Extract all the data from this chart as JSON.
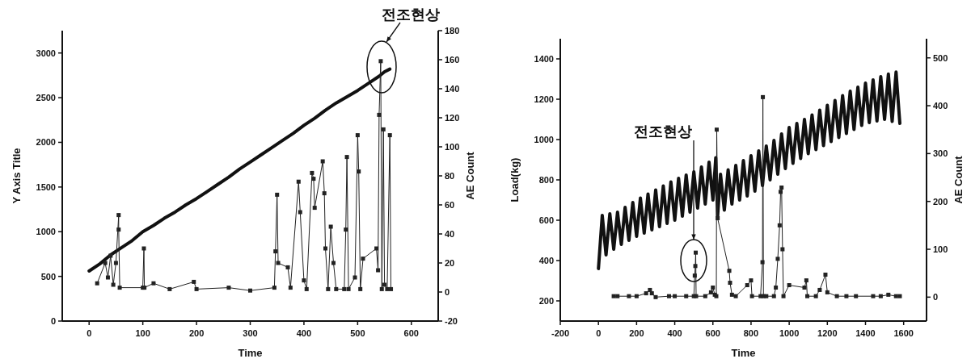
{
  "chart_data": [
    {
      "type": "line",
      "xlabel": "Time",
      "ylabel": "Y Axis Title",
      "y2label": "AE Count",
      "xlim": [
        -50,
        650
      ],
      "xticks": [
        0,
        100,
        200,
        300,
        400,
        500,
        600
      ],
      "ylim": [
        0,
        3250
      ],
      "yticks": [
        0,
        500,
        1000,
        1500,
        2000,
        2500,
        3000
      ],
      "y2lim": [
        -20,
        180
      ],
      "y2ticks": [
        -20,
        0,
        20,
        40,
        60,
        80,
        100,
        120,
        140,
        160,
        180
      ],
      "series": [
        {
          "color": "#111111",
          "marker": "none",
          "x": [
            0,
            20,
            40,
            60,
            80,
            100,
            120,
            140,
            160,
            180,
            200,
            220,
            240,
            260,
            280,
            300,
            320,
            340,
            360,
            380,
            400,
            420,
            440,
            460,
            480,
            500,
            520,
            540,
            550,
            560
          ],
          "values": [
            560,
            640,
            740,
            820,
            900,
            1000,
            1070,
            1150,
            1220,
            1300,
            1370,
            1450,
            1530,
            1610,
            1700,
            1780,
            1860,
            1940,
            2020,
            2100,
            2190,
            2270,
            2360,
            2440,
            2510,
            2580,
            2660,
            2740,
            2790,
            2820
          ]
        },
        {
          "color": "#222222",
          "axis": "y2",
          "marker": "square",
          "x": [
            15,
            30,
            35,
            40,
            45,
            50,
            55,
            55,
            57,
            100,
            102,
            103,
            120,
            150,
            195,
            200,
            260,
            300,
            345,
            347,
            350,
            352,
            370,
            375,
            390,
            393,
            400,
            405,
            415,
            418,
            420,
            435,
            438,
            440,
            445,
            450,
            455,
            460,
            475,
            478,
            480,
            483,
            495,
            500,
            502,
            505,
            510,
            535,
            538,
            540,
            543,
            545,
            548,
            550,
            555,
            560,
            562
          ],
          "values": [
            6,
            20,
            10,
            25,
            5,
            20,
            53,
            43,
            3,
            3,
            30,
            3,
            6,
            2,
            7,
            2,
            3,
            1,
            3,
            28,
            67,
            20,
            17,
            3,
            76,
            55,
            8,
            2,
            82,
            78,
            58,
            90,
            68,
            30,
            2,
            45,
            20,
            2,
            2,
            43,
            93,
            2,
            10,
            108,
            83,
            2,
            23,
            30,
            15,
            122,
            159,
            2,
            112,
            5,
            2,
            108,
            2
          ]
        }
      ],
      "annotations": [
        "전조현상"
      ]
    },
    {
      "type": "line",
      "xlabel": "Time",
      "ylabel": "Load(kg)",
      "y2label": "AE Count",
      "xlim": [
        -200,
        1720
      ],
      "xticks": [
        -200,
        0,
        200,
        400,
        600,
        800,
        1000,
        1200,
        1400,
        1600
      ],
      "ylim": [
        100,
        1500
      ],
      "yticks": [
        200,
        400,
        600,
        800,
        1000,
        1200,
        1400
      ],
      "y2lim": [
        -50,
        540
      ],
      "y2ticks": [
        0,
        100,
        200,
        300,
        400,
        500
      ],
      "series": [
        {
          "color": "#111111",
          "marker": "none",
          "x": [
            0,
            20,
            40,
            60,
            80,
            100,
            120,
            140,
            160,
            180,
            200,
            220,
            240,
            260,
            280,
            300,
            320,
            340,
            360,
            380,
            400,
            420,
            440,
            460,
            480,
            500,
            520,
            540,
            560,
            580,
            600,
            615,
            625,
            640,
            660,
            680,
            700,
            720,
            740,
            760,
            780,
            800,
            820,
            840,
            860,
            880,
            900,
            920,
            940,
            960,
            980,
            1000,
            1020,
            1040,
            1060,
            1080,
            1100,
            1120,
            1140,
            1160,
            1180,
            1200,
            1220,
            1240,
            1260,
            1280,
            1300,
            1320,
            1340,
            1360,
            1380,
            1400,
            1420,
            1440,
            1460,
            1480,
            1500,
            1520,
            1540,
            1560,
            1580
          ],
          "values": [
            360,
            624,
            428,
            632,
            456,
            640,
            480,
            664,
            500,
            688,
            520,
            710,
            536,
            730,
            552,
            750,
            568,
            770,
            584,
            790,
            600,
            808,
            620,
            824,
            640,
            840,
            660,
            864,
            680,
            888,
            700,
            910,
            620,
            828,
            650,
            850,
            680,
            872,
            700,
            896,
            720,
            920,
            744,
            944,
            772,
            968,
            800,
            996,
            828,
            1028,
            856,
            1060,
            882,
            1080,
            906,
            1100,
            930,
            1122,
            950,
            1146,
            970,
            1170,
            990,
            1194,
            1010,
            1218,
            1030,
            1240,
            1050,
            1260,
            1070,
            1280,
            1084,
            1296,
            1092,
            1312,
            1100,
            1325,
            1090,
            1335,
            1080
          ]
        },
        {
          "color": "#222222",
          "axis": "y2",
          "marker": "square",
          "x": [
            80,
            100,
            160,
            200,
            250,
            270,
            280,
            300,
            370,
            400,
            460,
            500,
            505,
            508,
            510,
            512,
            560,
            590,
            600,
            610,
            618,
            620,
            625,
            686,
            690,
            700,
            720,
            780,
            800,
            805,
            850,
            860,
            862,
            865,
            880,
            920,
            930,
            940,
            950,
            955,
            960,
            965,
            970,
            1000,
            1080,
            1090,
            1095,
            1140,
            1160,
            1190,
            1200,
            1250,
            1300,
            1350,
            1440,
            1480,
            1520,
            1560,
            1580
          ],
          "values": [
            2,
            2,
            2,
            2,
            8,
            15,
            8,
            0,
            2,
            2,
            2,
            2,
            45,
            65,
            93,
            2,
            2,
            10,
            20,
            5,
            2,
            350,
            165,
            55,
            30,
            5,
            2,
            25,
            35,
            2,
            2,
            73,
            418,
            2,
            2,
            2,
            20,
            80,
            150,
            220,
            229,
            100,
            2,
            25,
            20,
            35,
            2,
            2,
            15,
            47,
            10,
            2,
            2,
            2,
            2,
            2,
            5,
            2,
            2
          ]
        }
      ],
      "annotations": [
        "전조현상"
      ]
    }
  ]
}
